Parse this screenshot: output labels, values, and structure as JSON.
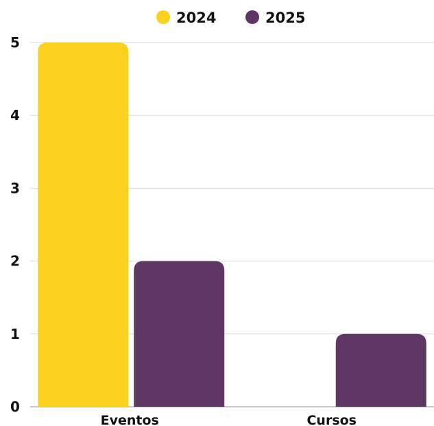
{
  "chart_data": {
    "type": "bar",
    "categories": [
      "Eventos",
      "Cursos"
    ],
    "series": [
      {
        "name": "2024",
        "values": [
          5,
          0
        ],
        "color": "#FBD01E"
      },
      {
        "name": "2025",
        "values": [
          2,
          1
        ],
        "color": "#5E3765"
      }
    ],
    "yticks": [
      "0",
      "1",
      "2",
      "3",
      "4",
      "5"
    ],
    "ylim": [
      0,
      5
    ],
    "title": "",
    "xlabel": "",
    "ylabel": "",
    "legend": "top-center",
    "grid": true
  }
}
